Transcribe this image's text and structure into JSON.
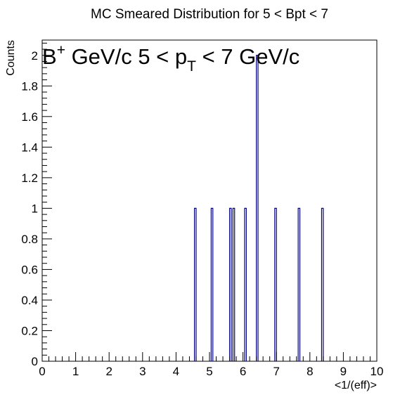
{
  "chart_data": {
    "type": "histogram",
    "title": "MC Smeared Distribution for 5 < Bpt < 7",
    "xlabel": "<1/(eff)>",
    "ylabel": "Counts",
    "xlim": [
      0,
      10
    ],
    "ylim": [
      0,
      2.1
    ],
    "x_ticks": [
      0,
      1,
      2,
      3,
      4,
      5,
      6,
      7,
      8,
      9,
      10
    ],
    "y_ticks": [
      0,
      0.2,
      0.4,
      0.6,
      0.8,
      1,
      1.2,
      1.4,
      1.6,
      1.8,
      2
    ],
    "x_tick_labels": [
      "0",
      "1",
      "2",
      "3",
      "4",
      "5",
      "6",
      "7",
      "8",
      "9",
      "10"
    ],
    "y_tick_labels": [
      "0",
      "0.2",
      "0.4",
      "0.6",
      "0.8",
      "1",
      "1.2",
      "1.4",
      "1.6",
      "1.8",
      "2"
    ],
    "bin_width": 0.05,
    "bins": [
      {
        "x": 4.55,
        "count": 1
      },
      {
        "x": 5.05,
        "count": 1
      },
      {
        "x": 5.6,
        "count": 1
      },
      {
        "x": 5.7,
        "count": 1
      },
      {
        "x": 6.05,
        "count": 1
      },
      {
        "x": 6.4,
        "count": 2
      },
      {
        "x": 6.95,
        "count": 1
      },
      {
        "x": 7.65,
        "count": 1
      },
      {
        "x": 8.35,
        "count": 1
      }
    ],
    "line_color": "#000080",
    "grid": false,
    "annotation": {
      "prefix": "B",
      "sup": "+",
      "middle": " GeV/c 5 < p",
      "sub": "T",
      "suffix": " < 7 GeV/c"
    }
  }
}
